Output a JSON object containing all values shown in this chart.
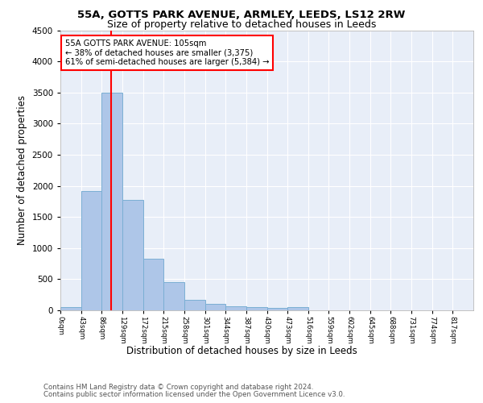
{
  "title1": "55A, GOTTS PARK AVENUE, ARMLEY, LEEDS, LS12 2RW",
  "title2": "Size of property relative to detached houses in Leeds",
  "xlabel": "Distribution of detached houses by size in Leeds",
  "ylabel": "Number of detached properties",
  "bar_edges": [
    0,
    43,
    86,
    129,
    172,
    215,
    258,
    301,
    344,
    387,
    430,
    473,
    516,
    559,
    602,
    645,
    688,
    731,
    774,
    817,
    860
  ],
  "bar_heights": [
    50,
    1920,
    3500,
    1780,
    830,
    450,
    170,
    100,
    60,
    50,
    45,
    50,
    0,
    0,
    0,
    0,
    0,
    0,
    0,
    0
  ],
  "bar_color": "#AEC6E8",
  "bar_edge_color": "#7BAFD4",
  "property_line_x": 105,
  "property_line_color": "red",
  "annotation_text": "55A GOTTS PARK AVENUE: 105sqm\n← 38% of detached houses are smaller (3,375)\n61% of semi-detached houses are larger (5,384) →",
  "annotation_box_color": "white",
  "annotation_box_edge": "red",
  "ylim": [
    0,
    4500
  ],
  "yticks": [
    0,
    500,
    1000,
    1500,
    2000,
    2500,
    3000,
    3500,
    4000,
    4500
  ],
  "bg_color": "#E8EEF8",
  "footnote1": "Contains HM Land Registry data © Crown copyright and database right 2024.",
  "footnote2": "Contains public sector information licensed under the Open Government Licence v3.0."
}
